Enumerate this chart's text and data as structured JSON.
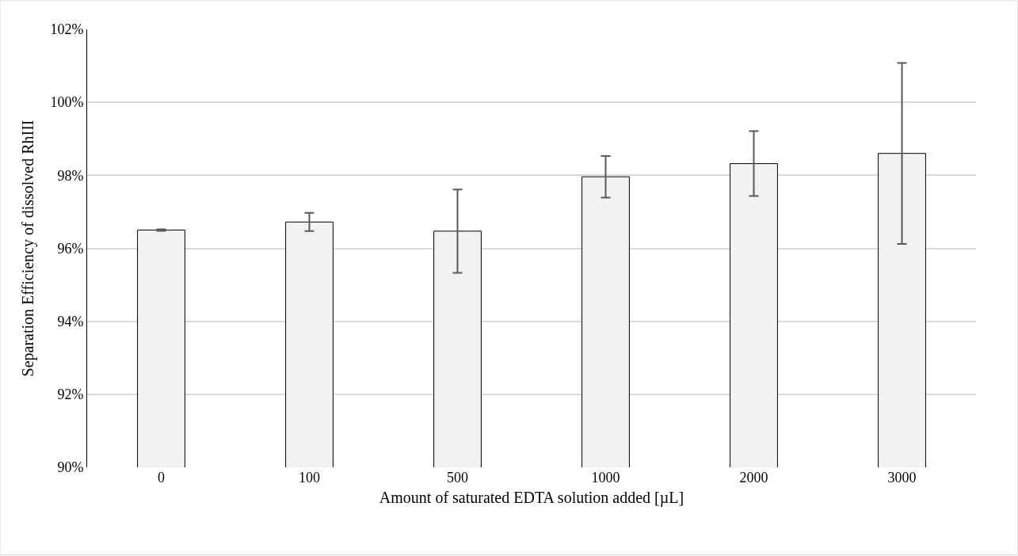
{
  "chart_data": {
    "type": "bar",
    "xlabel": "Amount of saturated EDTA solution added [µL]",
    "ylabel": "Separation Efficiency of dissolved RhIII",
    "categories": [
      "0",
      "100",
      "500",
      "1000",
      "2000",
      "3000"
    ],
    "values": [
      96.5,
      96.72,
      96.47,
      97.96,
      98.32,
      98.6
    ],
    "errors": [
      0.02,
      0.25,
      1.14,
      0.57,
      0.89,
      2.48
    ],
    "color": "#f2f2f2",
    "ylim": [
      90,
      102
    ],
    "yticks": [
      {
        "value": 90,
        "label": "90%"
      },
      {
        "value": 92,
        "label": "92%"
      },
      {
        "value": 94,
        "label": "94%"
      },
      {
        "value": 96,
        "label": "96%"
      },
      {
        "value": 98,
        "label": "98%"
      },
      {
        "value": 100,
        "label": "100%"
      },
      {
        "value": 102,
        "label": "102%"
      }
    ],
    "grid": "y"
  }
}
